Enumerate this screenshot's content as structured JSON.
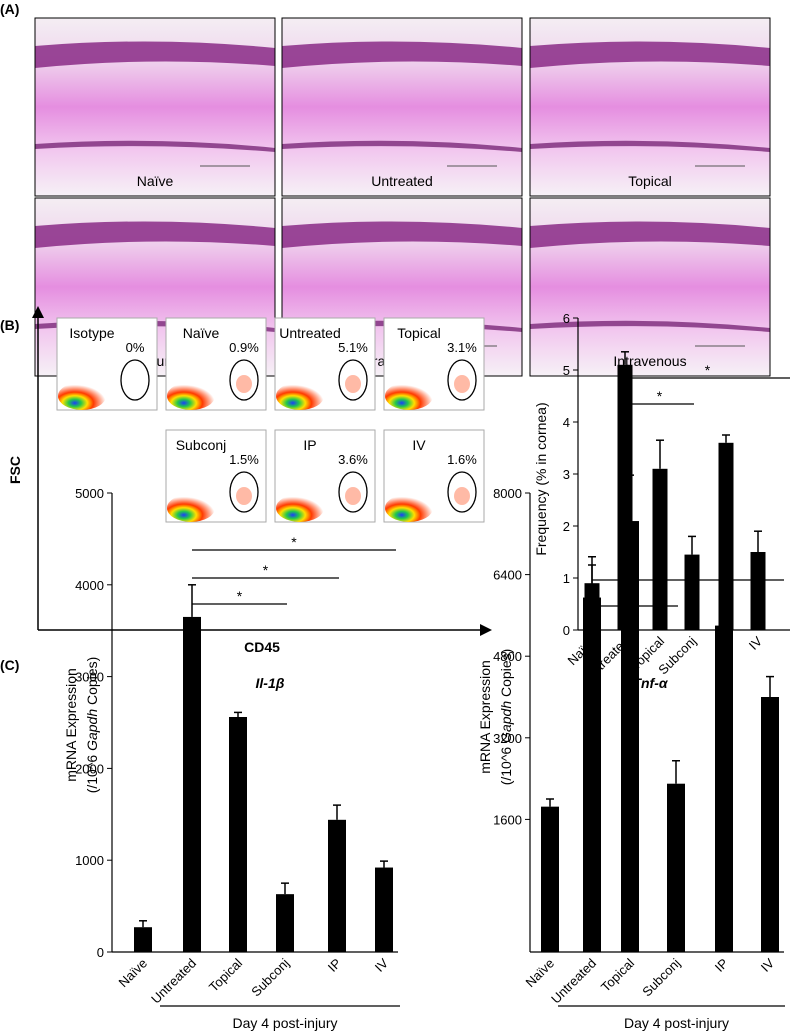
{
  "panel_labels": [
    "(A)",
    "(B)",
    "(C)"
  ],
  "histology": {
    "labels": [
      "Naïve",
      "Untreated",
      "Topical",
      "Subconjunctival",
      "Intraperitoneal",
      "Intravenous"
    ]
  },
  "flow": {
    "x_label": "CD45",
    "y_label": "FSC",
    "plots": [
      {
        "label": "Isotype",
        "percent": "0%"
      },
      {
        "label": "Naïve",
        "percent": "0.9%"
      },
      {
        "label": "Untreated",
        "percent": "5.1%"
      },
      {
        "label": "Topical",
        "percent": "3.1%"
      },
      {
        "label": "Subconj",
        "percent": "1.5%"
      },
      {
        "label": "IP",
        "percent": "3.6%"
      },
      {
        "label": "IV",
        "percent": "1.6%"
      }
    ]
  },
  "chart_data": [
    {
      "type": "bar",
      "ylabel_lines": [
        [
          "Frequency (% in cornea)"
        ]
      ],
      "categories": [
        "Naïve",
        "Untreated",
        "Topical",
        "Subconj",
        "IP",
        "IV"
      ],
      "values": [
        0.9,
        5.1,
        3.1,
        1.45,
        3.6,
        1.5
      ],
      "errors": [
        0.35,
        0.25,
        0.55,
        0.35,
        0.15,
        0.4
      ],
      "color": "#000000",
      "ylim": [
        0,
        6
      ],
      "yticks": [
        0,
        1,
        2,
        3,
        4,
        5,
        6
      ],
      "significance": [
        {
          "from": "Untreated",
          "to": "Subconj",
          "label": "*"
        },
        {
          "from": "Untreated",
          "to": "IV",
          "label": "*"
        }
      ]
    },
    {
      "type": "bar",
      "title": "Il-1β",
      "ylabel_lines": [
        [
          "mRNA Expression"
        ],
        [
          "(/10^6 ",
          "Gapdh",
          " Copies)"
        ]
      ],
      "categories": [
        "Naïve",
        "Untreated",
        "Topical",
        "Subconj",
        "IP",
        "IV"
      ],
      "values": [
        270,
        3650,
        2560,
        630,
        1440,
        920
      ],
      "errors": [
        70,
        350,
        50,
        120,
        160,
        70
      ],
      "color": "#000000",
      "ylim": [
        0,
        5000
      ],
      "yticks": [
        0,
        1000,
        2000,
        3000,
        4000,
        5000
      ],
      "significance": [
        {
          "from": "Untreated",
          "to": "Subconj",
          "label": "*"
        },
        {
          "from": "Untreated",
          "to": "IP",
          "label": "*"
        },
        {
          "from": "Untreated",
          "to": "IV",
          "label": "*"
        }
      ],
      "annotation": "Day 4 post-injury"
    },
    {
      "type": "bar",
      "title": "Tnf-α",
      "ylabel_lines": [
        [
          "mRNA Expression"
        ],
        [
          "(/10^6 ",
          "Gapdh",
          " Copies)"
        ]
      ],
      "categories": [
        "Naïve",
        "Untreated",
        "Topical",
        "Subconj",
        "IP",
        "IV"
      ],
      "values": [
        1850,
        5950,
        7450,
        2300,
        5400,
        4000
      ],
      "errors": [
        150,
        800,
        900,
        450,
        250,
        400
      ],
      "color": "#000000",
      "ylim": [
        -1000,
        8000
      ],
      "yticks": [
        1600,
        3200,
        4800,
        6400,
        8000
      ],
      "significance": [
        {
          "from": "Untreated",
          "to": "Subconj",
          "label": "*"
        },
        {
          "from": "Untreated",
          "to": "IV",
          "label": "*"
        }
      ],
      "annotation": "Day 4 post-injury"
    }
  ]
}
